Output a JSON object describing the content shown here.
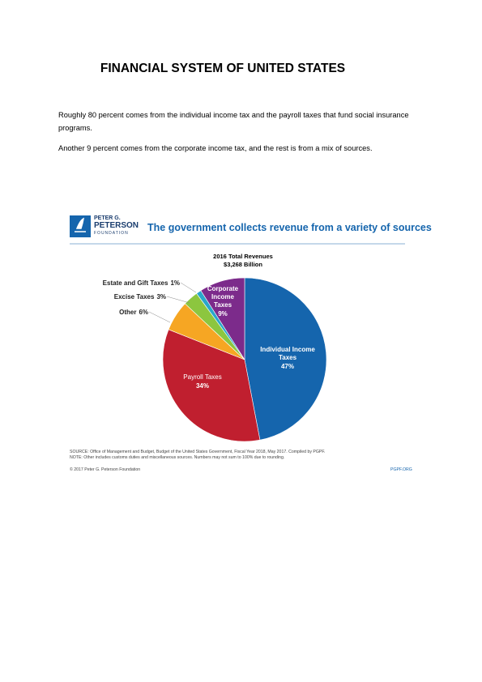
{
  "header": {
    "title": "FINANCIAL SYSTEM OF UNITED STATES"
  },
  "paragraphs": [
    "Roughly 80 percent comes from the individual income tax and the payroll taxes that fund social insurance programs.",
    "Another 9 percent comes from the corporate income tax, and the rest is from a mix of sources."
  ],
  "figure": {
    "logo": [
      "PETER G.",
      "PETERSON",
      "FOUNDATION"
    ],
    "source": "SOURCE: Office of Management and Budget, Budget of the United States Government, Fiscal Year 2018, May 2017. Compiled by PGPF.",
    "note": "NOTE: Other includes customs duties and miscellaneous sources. Numbers may not sum to 100% due to rounding.",
    "copyright": "© 2017 Peter G. Peterson Foundation",
    "site": "PGPF.ORG"
  },
  "chart_data": {
    "type": "pie",
    "title": "The government collects revenue from a variety of sources",
    "subtitle": "2016 Total Revenues",
    "total": "$3,268 Billion",
    "categories": [
      "Individual Income Taxes",
      "Payroll Taxes",
      "Other",
      "Excise Taxes",
      "Estate and Gift Taxes",
      "Corporate Income Taxes"
    ],
    "values": [
      47,
      34,
      6,
      3,
      1,
      9
    ],
    "value_labels": [
      "47%",
      "34%",
      "6%",
      "3%",
      "1%",
      "9%"
    ],
    "colors": [
      "#1565ad",
      "#c01f2f",
      "#f6a623",
      "#8cc63f",
      "#29a7cb",
      "#7c2b8b"
    ]
  }
}
